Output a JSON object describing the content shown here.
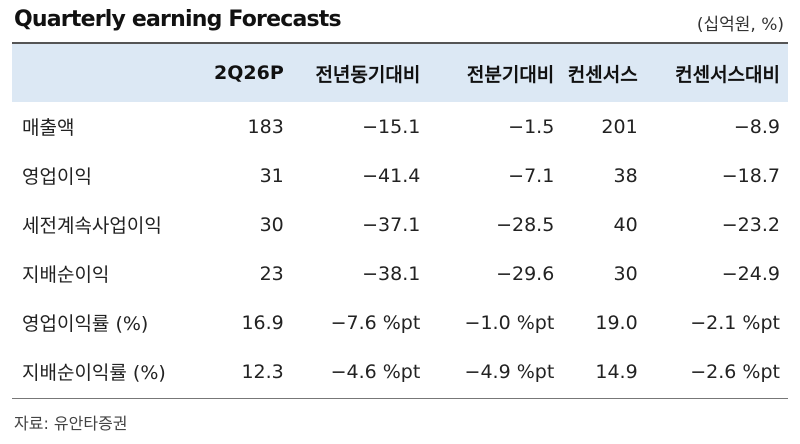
{
  "title": "Quarterly earning Forecasts",
  "unit": "(십억원, %)",
  "columns": [
    "",
    "2Q26P",
    "전년동기대비",
    "전분기대비",
    "컨센서스",
    "컨센서스대비"
  ],
  "rows": [
    {
      "label": "매출액",
      "values": [
        "183",
        "−15.1",
        "−1.5",
        "201",
        "−8.9"
      ]
    },
    {
      "label": "영업이익",
      "values": [
        "31",
        "−41.4",
        "−7.1",
        "38",
        "−18.7"
      ]
    },
    {
      "label": "세전계속사업이익",
      "values": [
        "30",
        "−37.1",
        "−28.5",
        "40",
        "−23.2"
      ]
    },
    {
      "label": "지배순이익",
      "values": [
        "23",
        "−38.1",
        "−29.6",
        "30",
        "−24.9"
      ]
    },
    {
      "label": "영업이익률 (%)",
      "values": [
        "16.9",
        "−7.6 %pt",
        "−1.0 %pt",
        "19.0",
        "−2.1 %pt"
      ]
    },
    {
      "label": "지배순이익률 (%)",
      "values": [
        "12.3",
        "−4.6 %pt",
        "−4.9 %pt",
        "14.9",
        "−2.6 %pt"
      ]
    }
  ],
  "source": "자료: 유안타증권"
}
